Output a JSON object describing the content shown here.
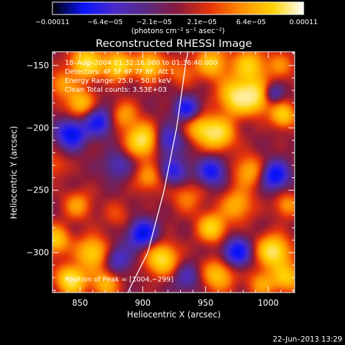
{
  "chart_data": {
    "type": "heatmap",
    "title": "Reconstructed RHESSI Image",
    "xlabel": "Heliocentric X (arcsec)",
    "ylabel": "Heliocentric Y (arcsec)",
    "xlim": [
      828,
      1021
    ],
    "ylim": [
      -332,
      -139
    ],
    "x_ticks": [
      850,
      900,
      950,
      1000
    ],
    "y_ticks": [
      -150,
      -200,
      -250,
      -300
    ],
    "x_tick_labels": [
      "850",
      "900",
      "950",
      "1000"
    ],
    "y_tick_labels": [
      "−150",
      "−200",
      "−250",
      "−300"
    ],
    "colorbar": {
      "range": [
        -0.00011,
        0.00011
      ],
      "tick_values": [
        -0.00011,
        -6.4e-05,
        -2.1e-05,
        2.1e-05,
        6.4e-05,
        0.00011
      ],
      "tick_labels": [
        "−0.00011",
        "−6.4e−05",
        "−2.1e−05",
        "2.1e−05",
        "6.4e−05",
        "0.00011"
      ],
      "unit_label": "(photons cm⁻² s⁻¹ asec⁻²)",
      "colormap": [
        "#000000",
        "#0a14ff",
        "#4a2bc8",
        "#5a2a80",
        "#8a1a3c",
        "#e6320a",
        "#ff8c00",
        "#ffd200",
        "#ffffff"
      ]
    },
    "info_lines": [
      "18–Aug–2004 01:32:16.000 to 01:36:40.000",
      "Detectors: 4F 5F 6F 7F 8F, Att 1",
      "Energy Range: 25.0 – 50.0 keV",
      "Clean    Total counts: 3.53E+03"
    ],
    "peak_label": "Position of Peak = [1004,−299]",
    "limb_curve": [
      [
        888,
        -332
      ],
      [
        904,
        -300
      ],
      [
        917,
        -250
      ],
      [
        927,
        -200
      ],
      [
        934,
        -150
      ],
      [
        936,
        -139
      ]
    ],
    "blobs": [
      [
        855,
        -148,
        0.9,
        9
      ],
      [
        880,
        -150,
        0.85,
        8
      ],
      [
        905,
        -150,
        0.8,
        8
      ],
      [
        930,
        -155,
        0.35,
        8
      ],
      [
        955,
        -148,
        0.7,
        9
      ],
      [
        985,
        -150,
        0.75,
        9
      ],
      [
        1010,
        -150,
        0.4,
        8
      ],
      [
        835,
        -165,
        0.5,
        7
      ],
      [
        850,
        -180,
        0.7,
        8
      ],
      [
        865,
        -195,
        -0.7,
        8
      ],
      [
        885,
        -190,
        0.5,
        8
      ],
      [
        900,
        -210,
        1.0,
        9
      ],
      [
        920,
        -210,
        -0.6,
        8
      ],
      [
        935,
        -185,
        -0.7,
        7
      ],
      [
        945,
        -200,
        0.6,
        8
      ],
      [
        960,
        -205,
        0.9,
        9
      ],
      [
        975,
        -175,
        0.95,
        10
      ],
      [
        992,
        -175,
        0.8,
        9
      ],
      [
        1003,
        -173,
        -0.65,
        6
      ],
      [
        1012,
        -190,
        0.75,
        7
      ],
      [
        843,
        -205,
        -0.85,
        8
      ],
      [
        830,
        -230,
        0.3,
        7
      ],
      [
        880,
        -230,
        -0.4,
        8
      ],
      [
        905,
        -240,
        0.5,
        8
      ],
      [
        925,
        -235,
        -0.6,
        8
      ],
      [
        955,
        -235,
        -0.7,
        8
      ],
      [
        985,
        -235,
        0.6,
        9
      ],
      [
        1005,
        -238,
        -0.85,
        8
      ],
      [
        848,
        -262,
        0.5,
        8
      ],
      [
        880,
        -270,
        0.25,
        8
      ],
      [
        900,
        -285,
        -0.85,
        8
      ],
      [
        935,
        -255,
        0.4,
        9
      ],
      [
        955,
        -280,
        0.8,
        8
      ],
      [
        975,
        -262,
        0.6,
        9
      ],
      [
        1015,
        -262,
        0.5,
        7
      ],
      [
        830,
        -290,
        0.75,
        8
      ],
      [
        860,
        -300,
        0.8,
        9
      ],
      [
        880,
        -305,
        -0.5,
        8
      ],
      [
        915,
        -305,
        0.9,
        9
      ],
      [
        935,
        -320,
        -0.4,
        8
      ],
      [
        960,
        -318,
        0.7,
        9
      ],
      [
        975,
        -300,
        -0.8,
        8
      ],
      [
        1004,
        -299,
        1.0,
        9
      ],
      [
        1015,
        -320,
        0.7,
        8
      ],
      [
        843,
        -322,
        1.0,
        8
      ],
      [
        870,
        -325,
        0.6,
        8
      ],
      [
        995,
        -325,
        0.5,
        8
      ]
    ]
  },
  "footer": {
    "timestamp": "22–Jun–2013 13:29"
  }
}
